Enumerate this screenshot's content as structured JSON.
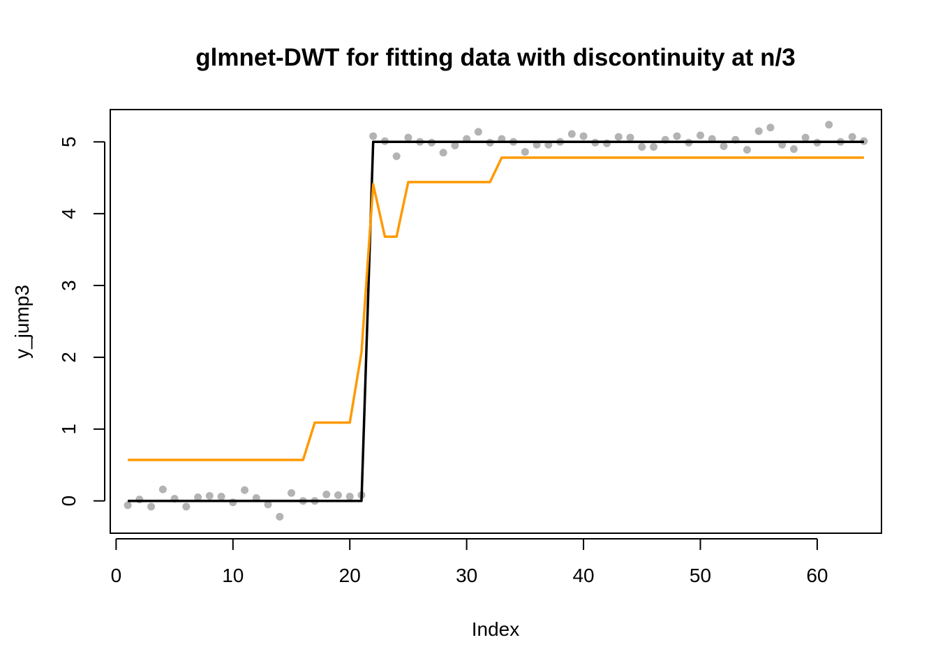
{
  "chart_data": {
    "type": "scatter",
    "title": "glmnet-DWT for fitting data with discontinuity at n/3",
    "xlabel": "Index",
    "ylabel": "y_jump3",
    "xlim": [
      -0.5,
      65.5
    ],
    "ylim": [
      -0.45,
      5.45
    ],
    "x_ticks": [
      0,
      10,
      20,
      30,
      40,
      50,
      60
    ],
    "y_ticks": [
      0,
      1,
      2,
      3,
      4,
      5
    ],
    "grid": false,
    "legend": "none",
    "colors": {
      "points": "#b3b3b3",
      "true_signal": "#000000",
      "fit": "#ff9900"
    },
    "series": [
      {
        "kind": "points",
        "x": [
          1,
          2,
          3,
          4,
          5,
          6,
          7,
          8,
          9,
          10,
          11,
          12,
          13,
          14,
          15,
          16,
          17,
          18,
          19,
          20,
          21,
          22,
          23,
          24,
          25,
          26,
          27,
          28,
          29,
          30,
          31,
          32,
          33,
          34,
          35,
          36,
          37,
          38,
          39,
          40,
          41,
          42,
          43,
          44,
          45,
          46,
          47,
          48,
          49,
          50,
          51,
          52,
          53,
          54,
          55,
          56,
          57,
          58,
          59,
          60,
          61,
          62,
          63,
          64
        ],
        "y": [
          -0.06,
          0.02,
          -0.08,
          0.16,
          0.03,
          -0.08,
          0.05,
          0.07,
          0.06,
          -0.02,
          0.15,
          0.04,
          -0.05,
          -0.22,
          0.11,
          0.0,
          0.0,
          0.09,
          0.08,
          0.06,
          0.08,
          5.08,
          5.01,
          4.8,
          5.06,
          5.0,
          4.99,
          4.85,
          4.95,
          5.04,
          5.14,
          4.99,
          5.04,
          5.0,
          4.86,
          4.96,
          4.96,
          5.0,
          5.11,
          5.08,
          4.99,
          4.98,
          5.07,
          5.06,
          4.93,
          4.93,
          5.03,
          5.08,
          4.99,
          5.09,
          5.04,
          4.94,
          5.03,
          4.89,
          5.15,
          5.2,
          4.96,
          4.9,
          5.06,
          4.99,
          5.24,
          5.0,
          5.07,
          5.01
        ]
      },
      {
        "kind": "line",
        "x": [
          1,
          21,
          22,
          64
        ],
        "y": [
          0,
          0,
          5,
          5
        ]
      },
      {
        "kind": "line",
        "x": [
          1,
          16,
          17,
          20,
          21,
          22,
          23,
          24,
          25,
          32,
          33,
          64
        ],
        "y": [
          0.57,
          0.57,
          1.09,
          1.09,
          2.07,
          4.41,
          3.68,
          3.68,
          4.44,
          4.44,
          4.78,
          4.78
        ]
      }
    ]
  }
}
